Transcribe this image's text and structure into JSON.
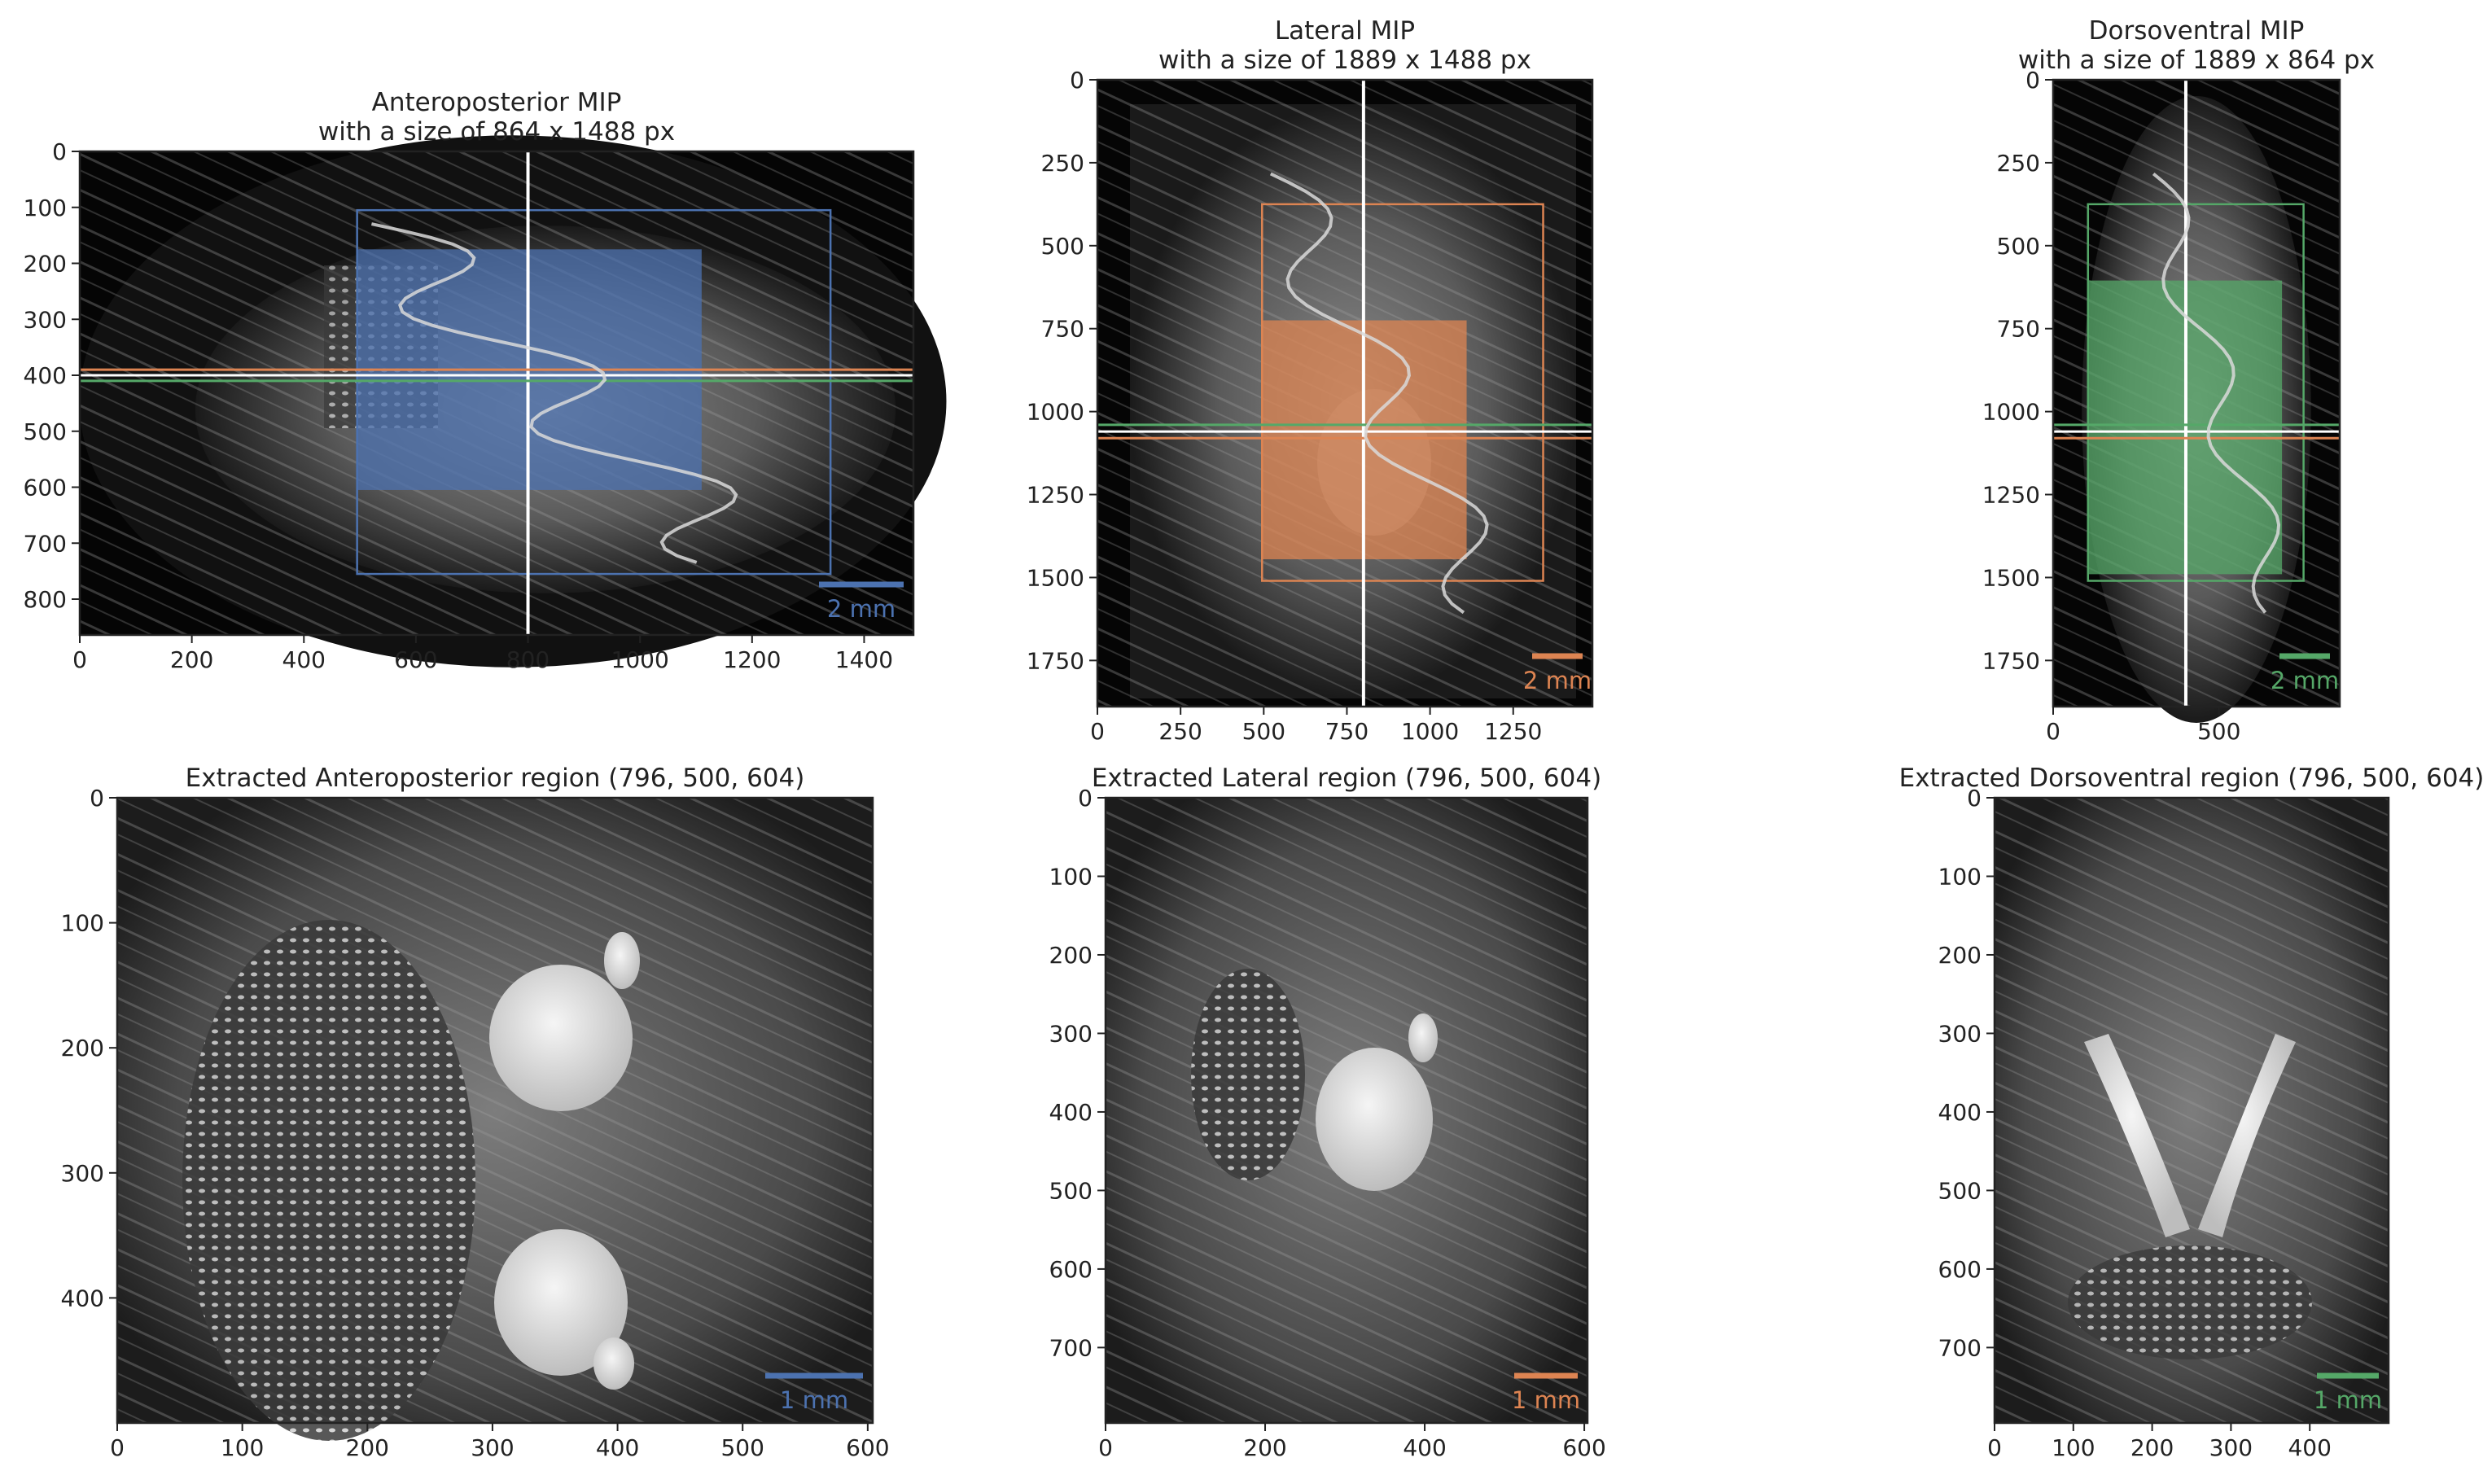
{
  "figure": {
    "colors": {
      "anteroposterior": "#4c72b0",
      "lateral": "#dd8452",
      "dorsoventral": "#55a868",
      "crosshair": "#ffffff",
      "profile": "#d9d9d9",
      "background": "#000000"
    },
    "panels": [
      {
        "id": "ap-mip",
        "title_lines": [
          "Anteroposterior MIP",
          "with a size of 864 x 1488 px"
        ],
        "xlim": [
          0,
          1488
        ],
        "ylim": [
          864,
          0
        ],
        "xticks": [
          0,
          200,
          400,
          600,
          800,
          1000,
          1200,
          1400
        ],
        "yticks": [
          0,
          100,
          200,
          300,
          400,
          500,
          600,
          700,
          800
        ],
        "accent": "anteroposterior",
        "scalebar_label": "2 mm",
        "outline_box": [
          495,
          105,
          1340,
          755
        ],
        "filled_box": [
          495,
          175,
          1110,
          605
        ],
        "vline_x": 800,
        "hlines": [
          {
            "y": 390,
            "color": "lateral"
          },
          {
            "y": 400,
            "color": "crosshair"
          },
          {
            "y": 410,
            "color": "dorsoventral"
          }
        ]
      },
      {
        "id": "lat-mip",
        "title_lines": [
          "Lateral MIP",
          "with a size of 1889 x 1488 px"
        ],
        "xlim": [
          0,
          1488
        ],
        "ylim": [
          1889,
          0
        ],
        "xticks": [
          0,
          250,
          500,
          750,
          1000,
          1250
        ],
        "yticks": [
          0,
          250,
          500,
          750,
          1000,
          1250,
          1500,
          1750
        ],
        "accent": "lateral",
        "scalebar_label": "2 mm",
        "outline_box": [
          495,
          375,
          1340,
          1510
        ],
        "filled_box": [
          495,
          725,
          1110,
          1445
        ],
        "vline_x": 800,
        "hlines": [
          {
            "y": 1040,
            "color": "dorsoventral"
          },
          {
            "y": 1060,
            "color": "crosshair"
          },
          {
            "y": 1080,
            "color": "lateral"
          }
        ]
      },
      {
        "id": "dv-mip",
        "title_lines": [
          "Dorsoventral MIP",
          "with a size of 1889 x 864 px"
        ],
        "xlim": [
          0,
          864
        ],
        "ylim": [
          1889,
          0
        ],
        "xticks": [
          0,
          500
        ],
        "yticks": [
          0,
          250,
          500,
          750,
          1000,
          1250,
          1500,
          1750
        ],
        "accent": "dorsoventral",
        "scalebar_label": "2 mm",
        "outline_box": [
          105,
          375,
          755,
          1510
        ],
        "filled_box": [
          105,
          605,
          690,
          1490
        ],
        "vline_x": 400,
        "hlines": [
          {
            "y": 1040,
            "color": "dorsoventral"
          },
          {
            "y": 1060,
            "color": "crosshair"
          },
          {
            "y": 1080,
            "color": "lateral"
          }
        ]
      },
      {
        "id": "ap-region",
        "title": "Extracted Anteroposterior region (796, 500, 604)",
        "xlim": [
          0,
          604
        ],
        "ylim": [
          500,
          0
        ],
        "xticks": [
          0,
          100,
          200,
          300,
          400,
          500,
          600
        ],
        "yticks": [
          0,
          100,
          200,
          300,
          400
        ],
        "accent": "anteroposterior",
        "scalebar_label": "1 mm"
      },
      {
        "id": "lat-region",
        "title": "Extracted Lateral region (796, 500, 604)",
        "xlim": [
          0,
          604
        ],
        "ylim": [
          796,
          0
        ],
        "xticks": [
          0,
          200,
          400,
          600
        ],
        "yticks": [
          0,
          100,
          200,
          300,
          400,
          500,
          600,
          700
        ],
        "accent": "lateral",
        "scalebar_label": "1 mm"
      },
      {
        "id": "dv-region",
        "title": "Extracted Dorsoventral region (796, 500, 604)",
        "xlim": [
          0,
          500
        ],
        "ylim": [
          796,
          0
        ],
        "xticks": [
          0,
          100,
          200,
          300,
          400
        ],
        "yticks": [
          0,
          100,
          200,
          300,
          400,
          500,
          600,
          700
        ],
        "accent": "dorsoventral",
        "scalebar_label": "1 mm"
      }
    ]
  }
}
